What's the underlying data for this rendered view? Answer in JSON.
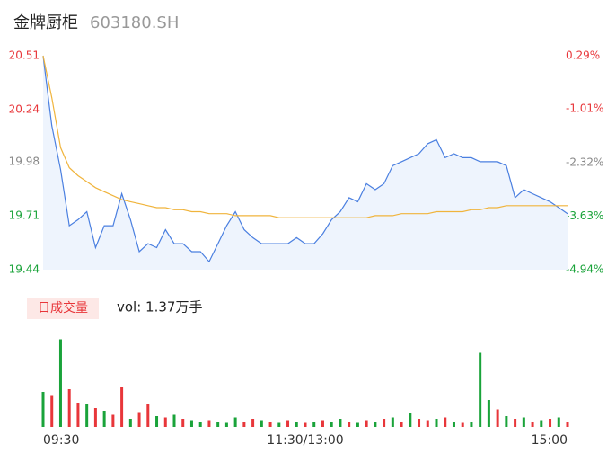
{
  "header": {
    "name": "金牌厨柜",
    "code": "603180.SH"
  },
  "chart_data": [
    {
      "type": "line",
      "x": [
        0,
        4,
        8,
        12,
        16,
        20,
        24,
        28,
        32,
        36,
        40,
        44,
        48,
        52,
        56,
        60,
        64,
        68,
        72,
        76,
        80,
        84,
        88,
        92,
        96,
        100,
        104,
        108,
        112,
        116,
        120,
        124,
        128,
        132,
        136,
        140,
        144,
        148,
        152,
        156,
        160,
        164,
        168,
        172,
        176,
        180,
        184,
        188,
        192,
        196,
        200,
        204,
        208,
        212,
        216,
        220,
        224,
        228,
        232,
        236,
        240
      ],
      "series": [
        {
          "name": "price",
          "color": "#4a7fe0",
          "values": [
            20.51,
            20.16,
            19.94,
            19.66,
            19.69,
            19.73,
            19.55,
            19.66,
            19.66,
            19.82,
            19.69,
            19.53,
            19.57,
            19.55,
            19.64,
            19.57,
            19.57,
            19.53,
            19.53,
            19.48,
            19.57,
            19.66,
            19.73,
            19.64,
            19.6,
            19.57,
            19.57,
            19.57,
            19.57,
            19.6,
            19.57,
            19.57,
            19.62,
            19.69,
            19.73,
            19.8,
            19.78,
            19.87,
            19.84,
            19.87,
            19.96,
            19.98,
            20.0,
            20.02,
            20.07,
            20.09,
            20.0,
            20.02,
            20.0,
            20.0,
            19.98,
            19.98,
            19.98,
            19.96,
            19.8,
            19.84,
            19.82,
            19.8,
            19.78,
            19.75,
            19.72
          ]
        },
        {
          "name": "average",
          "color": "#f0b43c",
          "values": [
            20.51,
            20.3,
            20.05,
            19.95,
            19.91,
            19.88,
            19.85,
            19.83,
            19.81,
            19.79,
            19.78,
            19.77,
            19.76,
            19.75,
            19.75,
            19.74,
            19.74,
            19.73,
            19.73,
            19.72,
            19.72,
            19.72,
            19.71,
            19.71,
            19.71,
            19.71,
            19.71,
            19.7,
            19.7,
            19.7,
            19.7,
            19.7,
            19.7,
            19.7,
            19.7,
            19.7,
            19.7,
            19.7,
            19.71,
            19.71,
            19.71,
            19.72,
            19.72,
            19.72,
            19.72,
            19.73,
            19.73,
            19.73,
            19.73,
            19.74,
            19.74,
            19.75,
            19.75,
            19.76,
            19.76,
            19.76,
            19.76,
            19.76,
            19.76,
            19.76,
            19.76
          ]
        }
      ],
      "xlim": [
        0,
        240
      ],
      "xticks": [
        {
          "value": 0,
          "label": "09:30"
        },
        {
          "value": 120,
          "label": "11:30/13:00"
        },
        {
          "value": 240,
          "label": "15:00"
        }
      ],
      "ylim": [
        19.44,
        20.51
      ],
      "yticks": [
        20.51,
        20.24,
        19.98,
        19.71,
        19.44
      ],
      "ytick_colors": [
        "#e8363a",
        "#e8363a",
        "#888888",
        "#1aa33a",
        "#1aa33a"
      ],
      "y2lim": [
        -4.94,
        0.29
      ],
      "y2ticks": [
        {
          "value": 0.29,
          "label": "0.29%"
        },
        {
          "value": -1.01,
          "label": "-1.01%"
        },
        {
          "value": -2.32,
          "label": "-2.32%"
        },
        {
          "value": -3.63,
          "label": "-3.63%"
        },
        {
          "value": -4.94,
          "label": "-4.94%"
        }
      ],
      "area_color": "#eef4fd"
    },
    {
      "type": "bar",
      "title": "日成交量",
      "annotation": "vol: 1.37万手",
      "ylim": [
        0,
        700
      ],
      "series": [
        {
          "name": "volume",
          "values": [
            260,
            230,
            650,
            280,
            180,
            170,
            140,
            120,
            90,
            300,
            60,
            110,
            170,
            80,
            70,
            90,
            60,
            50,
            40,
            50,
            40,
            30,
            70,
            40,
            60,
            50,
            40,
            30,
            50,
            40,
            30,
            40,
            50,
            40,
            60,
            40,
            30,
            50,
            40,
            60,
            70,
            40,
            100,
            60,
            50,
            60,
            70,
            40,
            30,
            40,
            550,
            200,
            130,
            80,
            60,
            70,
            40,
            50,
            60,
            70,
            40
          ],
          "colors": [
            "#1aa33a",
            "#e8363a",
            "#1aa33a",
            "#e8363a",
            "#e8363a",
            "#1aa33a",
            "#e8363a",
            "#1aa33a",
            "#e8363a",
            "#e8363a",
            "#1aa33a",
            "#e8363a",
            "#e8363a",
            "#1aa33a",
            "#e8363a",
            "#1aa33a",
            "#e8363a",
            "#1aa33a",
            "#1aa33a",
            "#e8363a",
            "#1aa33a",
            "#1aa33a",
            "#1aa33a",
            "#e8363a",
            "#e8363a",
            "#1aa33a",
            "#e8363a",
            "#1aa33a",
            "#e8363a",
            "#1aa33a",
            "#e8363a",
            "#1aa33a",
            "#e8363a",
            "#1aa33a",
            "#1aa33a",
            "#e8363a",
            "#1aa33a",
            "#e8363a",
            "#1aa33a",
            "#e8363a",
            "#1aa33a",
            "#e8363a",
            "#1aa33a",
            "#e8363a",
            "#e8363a",
            "#1aa33a",
            "#e8363a",
            "#1aa33a",
            "#e8363a",
            "#1aa33a",
            "#1aa33a",
            "#1aa33a",
            "#e8363a",
            "#1aa33a",
            "#e8363a",
            "#1aa33a",
            "#e8363a",
            "#1aa33a",
            "#e8363a",
            "#1aa33a",
            "#e8363a"
          ]
        }
      ]
    }
  ]
}
